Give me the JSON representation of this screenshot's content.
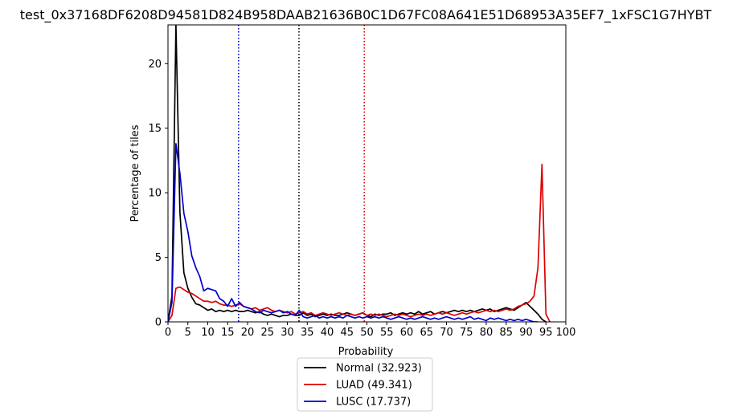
{
  "chart_data": {
    "type": "line",
    "title": "test_0x37168DF6208D94581D824B958DAAB21636B0C1D67FC08A641E51D68953A35EF7_1xFSC1G7HYBT",
    "xlabel": "Probability",
    "ylabel": "Percentage of tiles",
    "xlim": [
      0,
      100
    ],
    "ylim": [
      0,
      23
    ],
    "x_ticks": [
      "0",
      "5",
      "10",
      "15",
      "20",
      "25",
      "30",
      "35",
      "40",
      "45",
      "50",
      "55",
      "60",
      "65",
      "70",
      "75",
      "80",
      "85",
      "90",
      "95",
      "100"
    ],
    "y_ticks": [
      "0",
      "5",
      "10",
      "15",
      "20"
    ],
    "grid": false,
    "legend_position": "below",
    "series": [
      {
        "name": "Normal (32.923)",
        "color": "#000000",
        "x": [
          0,
          1,
          2,
          3,
          4,
          5,
          6,
          7,
          8,
          9,
          10,
          11,
          12,
          13,
          14,
          15,
          16,
          17,
          18,
          19,
          20,
          21,
          22,
          23,
          24,
          25,
          26,
          27,
          28,
          29,
          30,
          31,
          32,
          33,
          34,
          35,
          36,
          37,
          38,
          39,
          40,
          41,
          42,
          43,
          44,
          45,
          46,
          47,
          48,
          49,
          50,
          51,
          52,
          53,
          54,
          55,
          56,
          57,
          58,
          59,
          60,
          61,
          62,
          63,
          64,
          65,
          66,
          67,
          68,
          69,
          70,
          71,
          72,
          73,
          74,
          75,
          76,
          77,
          78,
          79,
          80,
          81,
          82,
          83,
          84,
          85,
          86,
          87,
          88,
          89,
          90,
          91,
          92,
          93,
          94,
          95
        ],
        "y": [
          0,
          2,
          23,
          8.5,
          3.8,
          2.6,
          1.9,
          1.4,
          1.3,
          1.1,
          0.9,
          1.0,
          0.8,
          0.9,
          0.8,
          0.9,
          0.8,
          0.9,
          0.8,
          0.8,
          0.9,
          0.8,
          0.7,
          0.8,
          0.6,
          0.5,
          0.6,
          0.5,
          0.4,
          0.5,
          0.5,
          0.6,
          0.5,
          0.5,
          0.7,
          0.5,
          0.6,
          0.4,
          0.5,
          0.6,
          0.5,
          0.6,
          0.5,
          0.5,
          0.6,
          0.7,
          0.6,
          0.5,
          0.6,
          0.7,
          0.5,
          0.4,
          0.6,
          0.5,
          0.6,
          0.6,
          0.7,
          0.5,
          0.6,
          0.7,
          0.6,
          0.7,
          0.6,
          0.8,
          0.6,
          0.7,
          0.8,
          0.6,
          0.7,
          0.8,
          0.7,
          0.8,
          0.9,
          0.8,
          0.9,
          0.8,
          0.9,
          0.8,
          0.9,
          1.0,
          0.9,
          1.0,
          0.8,
          0.9,
          1.0,
          1.1,
          1.0,
          0.9,
          1.1,
          1.3,
          1.5,
          1.2,
          0.9,
          0.6,
          0.2,
          0.0
        ]
      },
      {
        "name": "LUAD (49.341)",
        "color": "#dd0000",
        "x": [
          0,
          1,
          2,
          3,
          4,
          5,
          6,
          7,
          8,
          9,
          10,
          11,
          12,
          13,
          14,
          15,
          16,
          17,
          18,
          19,
          20,
          21,
          22,
          23,
          24,
          25,
          26,
          27,
          28,
          29,
          30,
          31,
          32,
          33,
          34,
          35,
          36,
          37,
          38,
          39,
          40,
          41,
          42,
          43,
          44,
          45,
          46,
          47,
          48,
          49,
          50,
          51,
          52,
          53,
          54,
          55,
          56,
          57,
          58,
          59,
          60,
          61,
          62,
          63,
          64,
          65,
          66,
          67,
          68,
          69,
          70,
          71,
          72,
          73,
          74,
          75,
          76,
          77,
          78,
          79,
          80,
          81,
          82,
          83,
          84,
          85,
          86,
          87,
          88,
          89,
          90,
          91,
          92,
          93,
          94,
          95,
          96
        ],
        "y": [
          0,
          0.5,
          2.6,
          2.7,
          2.5,
          2.3,
          2.2,
          2.0,
          1.8,
          1.6,
          1.6,
          1.5,
          1.6,
          1.4,
          1.3,
          1.3,
          1.2,
          1.3,
          1.4,
          1.2,
          1.1,
          1.0,
          1.1,
          0.9,
          1.0,
          1.1,
          0.9,
          0.8,
          0.9,
          0.8,
          0.7,
          0.8,
          0.6,
          0.7,
          0.8,
          0.6,
          0.7,
          0.5,
          0.6,
          0.7,
          0.6,
          0.5,
          0.6,
          0.7,
          0.6,
          0.5,
          0.6,
          0.5,
          0.6,
          0.7,
          0.5,
          0.6,
          0.5,
          0.6,
          0.5,
          0.4,
          0.5,
          0.6,
          0.5,
          0.6,
          0.5,
          0.4,
          0.5,
          0.6,
          0.5,
          0.6,
          0.5,
          0.6,
          0.7,
          0.6,
          0.7,
          0.6,
          0.5,
          0.6,
          0.7,
          0.6,
          0.7,
          0.8,
          0.7,
          0.8,
          0.9,
          0.8,
          0.9,
          0.8,
          0.9,
          1.0,
          0.9,
          1.0,
          1.2,
          1.3,
          1.4,
          1.6,
          2.0,
          4.2,
          12.2,
          0.6,
          0.0
        ]
      },
      {
        "name": "LUSC (17.737)",
        "color": "#0000cc",
        "x": [
          0,
          1,
          2,
          3,
          4,
          5,
          6,
          7,
          8,
          9,
          10,
          11,
          12,
          13,
          14,
          15,
          16,
          17,
          18,
          19,
          20,
          21,
          22,
          23,
          24,
          25,
          26,
          27,
          28,
          29,
          30,
          31,
          32,
          33,
          34,
          35,
          36,
          37,
          38,
          39,
          40,
          41,
          42,
          43,
          44,
          45,
          46,
          47,
          48,
          49,
          50,
          51,
          52,
          53,
          54,
          55,
          56,
          57,
          58,
          59,
          60,
          61,
          62,
          63,
          64,
          65,
          66,
          67,
          68,
          69,
          70,
          71,
          72,
          73,
          74,
          75,
          76,
          77,
          78,
          79,
          80,
          81,
          82,
          83,
          84,
          85,
          86,
          87,
          88,
          89,
          90,
          91,
          92,
          93
        ],
        "y": [
          0,
          1.5,
          13.8,
          11.5,
          8.4,
          7.0,
          5.1,
          4.2,
          3.5,
          2.4,
          2.6,
          2.5,
          2.4,
          1.8,
          1.6,
          1.2,
          1.8,
          1.2,
          1.5,
          1.2,
          1.1,
          1.0,
          0.8,
          0.7,
          0.9,
          0.8,
          0.7,
          0.8,
          0.9,
          0.7,
          0.8,
          0.6,
          0.5,
          0.9,
          0.4,
          0.3,
          0.4,
          0.5,
          0.3,
          0.4,
          0.3,
          0.4,
          0.3,
          0.4,
          0.3,
          0.5,
          0.4,
          0.3,
          0.4,
          0.3,
          0.4,
          0.3,
          0.4,
          0.3,
          0.4,
          0.3,
          0.2,
          0.3,
          0.4,
          0.3,
          0.2,
          0.3,
          0.2,
          0.3,
          0.4,
          0.3,
          0.2,
          0.3,
          0.2,
          0.3,
          0.4,
          0.3,
          0.2,
          0.3,
          0.2,
          0.3,
          0.4,
          0.2,
          0.3,
          0.2,
          0.1,
          0.3,
          0.2,
          0.3,
          0.2,
          0.1,
          0.2,
          0.1,
          0.2,
          0.1,
          0.2,
          0.1,
          0.0,
          0.0
        ]
      }
    ],
    "vlines": [
      {
        "x": 17.737,
        "color": "#0000cc",
        "style": "dotted"
      },
      {
        "x": 32.923,
        "color": "#000000",
        "style": "dotted"
      },
      {
        "x": 49.341,
        "color": "#dd0000",
        "style": "dotted"
      }
    ]
  }
}
